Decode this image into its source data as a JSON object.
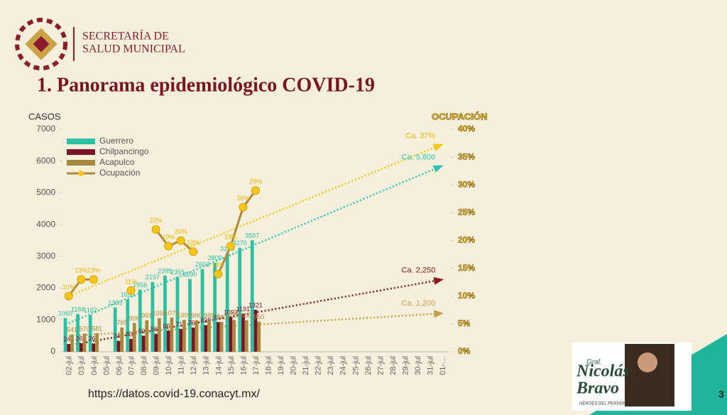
{
  "header": {
    "org_line1": "SECRETARÍA DE",
    "org_line2": "SALUD MUNICIPAL",
    "title": "1. Panorama epidemiológico COVID-19"
  },
  "chart_data": {
    "type": "bar",
    "y_label": "CASOS",
    "y2_label": "OCUPACIÓN",
    "categories": [
      "02-jul",
      "03-jul",
      "04-jul",
      "05-jul",
      "06-jul",
      "07-jul",
      "08-jul",
      "09-jul",
      "10-jul",
      "11-jul",
      "12-jul",
      "13-jul",
      "14-jul",
      "15-jul",
      "16-jul",
      "17-jul",
      "18-jul",
      "19-jul",
      "20-jul",
      "21-jul",
      "22-jul",
      "23-jul",
      "24-jul",
      "25-jul",
      "26-jul",
      "27-jul",
      "28-jul",
      "29-jul",
      "30-jul",
      "31-jul",
      "01-…"
    ],
    "series": [
      {
        "name": "Guerrero",
        "color": "#2bbfa4",
        "values": [
          1060,
          1184,
          1162,
          null,
          1393,
          1650,
          1956,
          2197,
          2395,
          2355,
          2290,
          2603,
          2800,
          3100,
          3270,
          3507,
          null,
          null,
          null,
          null,
          null,
          null,
          null,
          null,
          null,
          null,
          null,
          null,
          null,
          null,
          null
        ]
      },
      {
        "name": "Chilpancingo",
        "color": "#7a1424",
        "values": [
          245,
          265,
          260,
          null,
          345,
          405,
          505,
          565,
          665,
          717,
          761,
          838,
          934,
          1093,
          1191,
          1321,
          null,
          null,
          null,
          null,
          null,
          null,
          null,
          null,
          null,
          null,
          null,
          null,
          null,
          null,
          null
        ]
      },
      {
        "name": "Acapulco",
        "color": "#a8883e",
        "values": [
          541,
          570,
          581,
          null,
          765,
          906,
          991,
          1056,
          1075,
          1004,
          990,
          988,
          940,
          1000,
          990,
          950,
          null,
          null,
          null,
          null,
          null,
          null,
          null,
          null,
          null,
          null,
          null,
          null,
          null,
          null,
          null
        ]
      },
      {
        "name": "Ocupación",
        "type": "line",
        "axis": "y2",
        "color": "#b08a3c",
        "marker_color": "#f5c518",
        "values": [
          10,
          13,
          13,
          null,
          null,
          11,
          null,
          22,
          19,
          20,
          18,
          null,
          14,
          19,
          26,
          29,
          null,
          null,
          null,
          null,
          null,
          null,
          null,
          null,
          null,
          null,
          null,
          null,
          null,
          null,
          null
        ],
        "value_labels": [
          "10%",
          "13%",
          "13%",
          null,
          null,
          "11%",
          null,
          "22%",
          "19%",
          "20%",
          "18%",
          null,
          "14%",
          "19%",
          "26%",
          "29%",
          null,
          null,
          null,
          null,
          null,
          null,
          null,
          null,
          null,
          null,
          null,
          null,
          null,
          null,
          null
        ]
      }
    ],
    "trends": [
      {
        "label": "Ca. 37%",
        "start": 10,
        "value": 37,
        "axis": "y2",
        "color": "#f2c80f"
      },
      {
        "label": "Ca. 5,800",
        "start": 900,
        "value": 5800,
        "color": "#2ec4b6"
      },
      {
        "label": "Ca. 2,250",
        "start": 200,
        "value": 2250,
        "color": "#8b1a1a"
      },
      {
        "label": "Ca. 1,200",
        "start": 500,
        "value": 1200,
        "color": "#c9a24a"
      }
    ],
    "ylim": [
      0,
      7000
    ],
    "yticks": [
      0,
      1000,
      2000,
      3000,
      4000,
      5000,
      6000,
      7000
    ],
    "y2lim": [
      0,
      40
    ],
    "y2ticks": [
      {
        "value": 0,
        "label": "0%"
      },
      {
        "value": 5,
        "label": "5%"
      },
      {
        "value": 10,
        "label": "10%"
      },
      {
        "value": 15,
        "label": "15%"
      },
      {
        "value": 20,
        "label": "20%"
      },
      {
        "value": 25,
        "label": "25%"
      },
      {
        "value": 30,
        "label": "30%"
      },
      {
        "value": 35,
        "label": "35%"
      },
      {
        "value": 40,
        "label": "40%"
      }
    ],
    "legend": "top-left"
  },
  "footer": {
    "source": "https://datos.covid-19.conacyt.mx/",
    "brand_small": "Gral.",
    "brand_line1": "Nicolás",
    "brand_line2": "Bravo",
    "brand_motto": "HÉROES DEL PERDÓN",
    "page": "3"
  }
}
